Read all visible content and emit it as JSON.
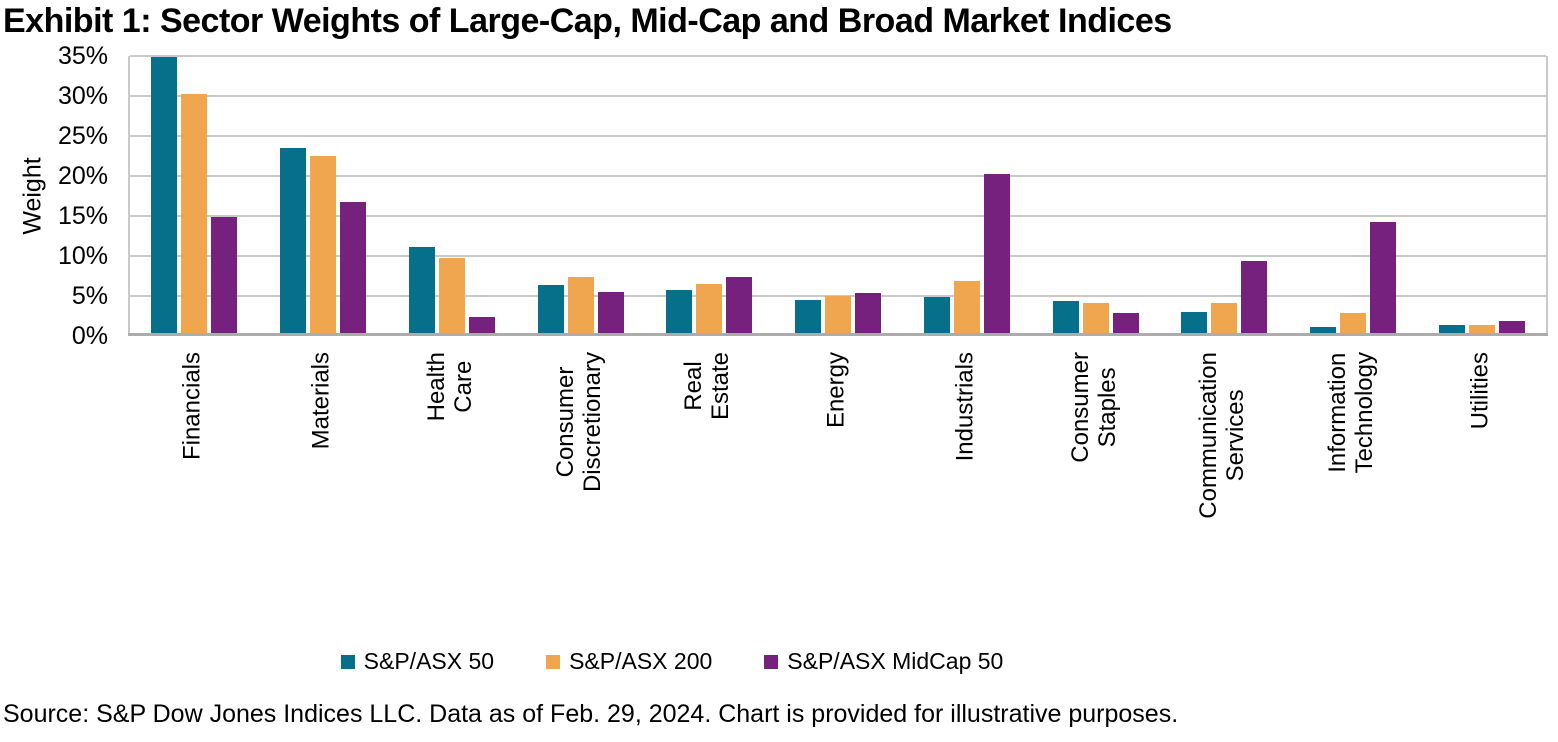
{
  "title": "Exhibit 1: Sector Weights of Large-Cap, Mid-Cap and Broad Market Indices",
  "source": "Source: S&P Dow Jones Indices LLC. Data as of Feb. 29, 2024. Chart is provided for illustrative purposes.",
  "chart_data": {
    "type": "bar",
    "title": "Exhibit 1: Sector Weights of Large-Cap, Mid-Cap and Broad Market Indices",
    "xlabel": "",
    "ylabel": "Weight",
    "ylim": [
      0,
      35
    ],
    "ytick_step": 5,
    "ytick_suffix": "%",
    "grid": true,
    "legend_position": "bottom",
    "categories": [
      "Financials",
      "Materials",
      "Health Care",
      "Consumer\nDiscretionary",
      "Real Estate",
      "Energy",
      "Industrials",
      "Consumer Staples",
      "Communication\nServices",
      "Information Technology",
      "Utilities"
    ],
    "series": [
      {
        "name": "S&P/ASX 50",
        "color": "#066F89",
        "values": [
          34.8,
          23.4,
          11.0,
          6.3,
          5.6,
          4.4,
          4.7,
          4.3,
          2.9,
          1.0,
          1.3
        ]
      },
      {
        "name": "S&P/ASX 200",
        "color": "#F0A64F",
        "values": [
          30.1,
          22.4,
          9.6,
          7.3,
          6.4,
          4.9,
          6.8,
          4.0,
          4.0,
          2.7,
          1.2
        ]
      },
      {
        "name": "S&P/ASX MidCap 50",
        "color": "#77217E",
        "values": [
          14.8,
          16.6,
          2.3,
          5.4,
          7.2,
          5.3,
          20.1,
          2.8,
          9.3,
          14.1,
          1.7
        ]
      }
    ]
  },
  "colors": {
    "gridline": "#C9C9C9",
    "axis_line": "#ACACAC",
    "text": "#000000",
    "background": "#FFFFFF"
  }
}
